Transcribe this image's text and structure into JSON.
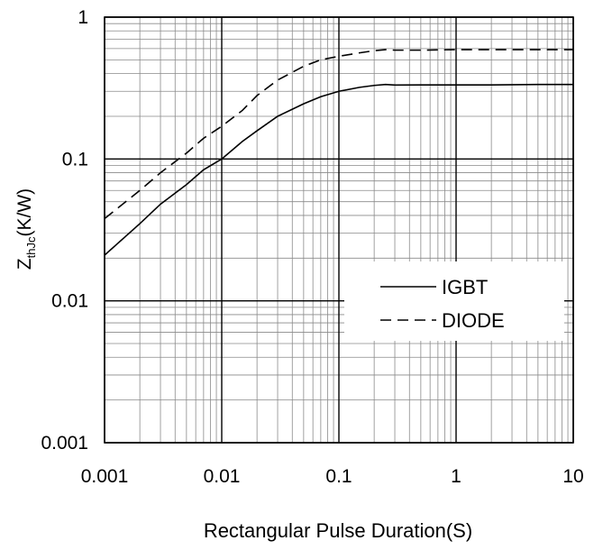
{
  "chart_data": {
    "type": "line",
    "title": "",
    "xlabel": "Rectangular Pulse Duration(S)",
    "ylabel": {
      "main": "Z",
      "sub": "thJc",
      "unit": "(K/W)"
    },
    "x_scale": "log",
    "y_scale": "log",
    "xlim": [
      0.001,
      10
    ],
    "ylim": [
      0.001,
      1
    ],
    "x_ticks": [
      {
        "value": 0.001,
        "label": "0.001"
      },
      {
        "value": 0.01,
        "label": "0.01"
      },
      {
        "value": 0.1,
        "label": "0.1"
      },
      {
        "value": 1,
        "label": "1"
      },
      {
        "value": 10,
        "label": "10"
      }
    ],
    "y_ticks": [
      {
        "value": 0.001,
        "label": "0.001"
      },
      {
        "value": 0.01,
        "label": "0.01"
      },
      {
        "value": 0.1,
        "label": "0.1"
      },
      {
        "value": 1,
        "label": "1"
      }
    ],
    "grid": true,
    "legend_position": "lower-right",
    "series": [
      {
        "name": "IGBT",
        "line_style": "solid",
        "color": "#000000",
        "x": [
          0.001,
          0.002,
          0.003,
          0.005,
          0.007,
          0.01,
          0.015,
          0.02,
          0.03,
          0.05,
          0.07,
          0.1,
          0.15,
          0.2,
          0.25,
          0.3,
          0.5,
          0.7,
          1,
          2,
          5,
          10
        ],
        "y": [
          0.021,
          0.035,
          0.048,
          0.066,
          0.084,
          0.1,
          0.133,
          0.158,
          0.2,
          0.245,
          0.275,
          0.3,
          0.32,
          0.33,
          0.335,
          0.332,
          0.333,
          0.333,
          0.333,
          0.333,
          0.335,
          0.335
        ]
      },
      {
        "name": "DIODE",
        "line_style": "dashed",
        "color": "#000000",
        "x": [
          0.001,
          0.002,
          0.003,
          0.005,
          0.007,
          0.01,
          0.015,
          0.02,
          0.03,
          0.05,
          0.07,
          0.1,
          0.15,
          0.2,
          0.25,
          0.3,
          0.5,
          1,
          2,
          5,
          10
        ],
        "y": [
          0.038,
          0.06,
          0.08,
          0.11,
          0.14,
          0.17,
          0.22,
          0.28,
          0.36,
          0.45,
          0.5,
          0.53,
          0.56,
          0.58,
          0.59,
          0.585,
          0.585,
          0.59,
          0.59,
          0.59,
          0.59
        ]
      }
    ]
  },
  "colors": {
    "axis": "#000000",
    "major_grid": "#000000",
    "minor_grid": "#8a8a8a",
    "background": "#ffffff"
  }
}
